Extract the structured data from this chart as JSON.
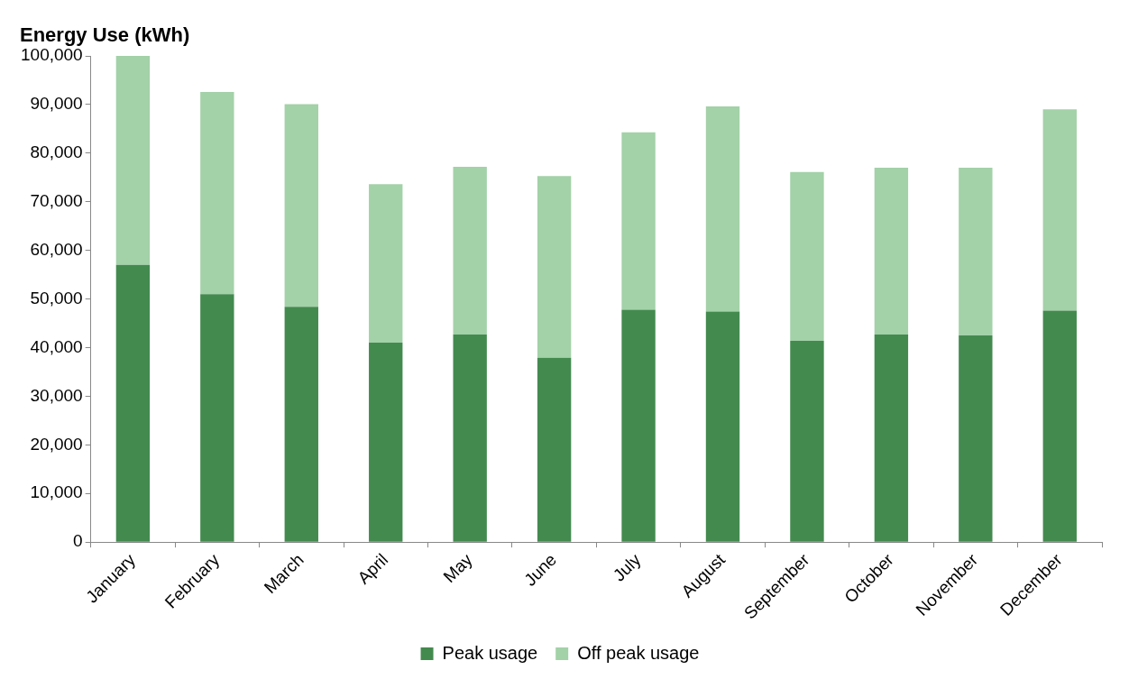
{
  "chart_data": {
    "type": "bar",
    "title": "Energy Use (kWh)",
    "stacked": true,
    "categories": [
      "January",
      "February",
      "March",
      "April",
      "May",
      "June",
      "July",
      "August",
      "September",
      "October",
      "November",
      "December"
    ],
    "series": [
      {
        "name": "Peak usage",
        "color": "#438a4f",
        "values": [
          57000,
          51000,
          48400,
          41000,
          42700,
          37900,
          47800,
          47400,
          41400,
          42700,
          42500,
          47600
        ]
      },
      {
        "name": "Off peak usage",
        "color": "#a3d1a8",
        "values": [
          43000,
          41600,
          41700,
          32600,
          34500,
          37400,
          36500,
          42200,
          34700,
          34300,
          34500,
          41400
        ]
      }
    ],
    "ylim": [
      0,
      100000
    ],
    "yticks": [
      0,
      {
        "value": 10000,
        "label": "10,000"
      },
      {
        "value": 20000,
        "label": "20,000"
      },
      {
        "value": 30000,
        "label": "30,000"
      },
      {
        "value": 40000,
        "label": "40,000"
      },
      {
        "value": 50000,
        "label": "50,000"
      },
      {
        "value": 60000,
        "label": "60,000"
      },
      {
        "value": 70000,
        "label": "70,000"
      },
      {
        "value": 80000,
        "label": "80,000"
      },
      {
        "value": 90000,
        "label": "90,000"
      },
      {
        "value": 100000,
        "label": "100,000"
      }
    ],
    "grid": false,
    "legend": "bottom"
  }
}
